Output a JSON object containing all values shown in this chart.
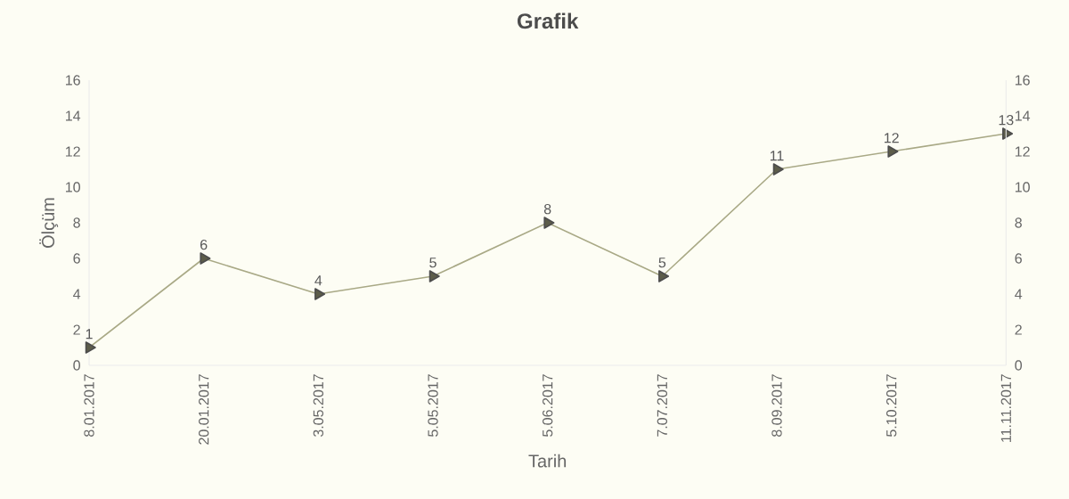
{
  "chart_data": {
    "type": "line",
    "title": "Grafik",
    "xlabel": "Tarih",
    "ylabel": "Ölçüm",
    "categories": [
      "8.01.2017",
      "20.01.2017",
      "3.05.2017",
      "5.05.2017",
      "5.06.2017",
      "7.07.2017",
      "8.09.2017",
      "5.10.2017",
      "11.11.2017"
    ],
    "values": [
      1,
      6,
      4,
      5,
      8,
      5,
      11,
      12,
      13
    ],
    "color": "#a9a986",
    "ylim": [
      0,
      16
    ],
    "yticks": [
      0,
      2,
      4,
      6,
      8,
      10,
      12,
      14,
      16
    ],
    "y2lim": [
      0,
      16
    ],
    "y2ticks": [
      0,
      2,
      4,
      6,
      8,
      10,
      12,
      14,
      16
    ],
    "data_labels": true,
    "marker": "triangle",
    "line_style": "solid",
    "grid": false
  }
}
